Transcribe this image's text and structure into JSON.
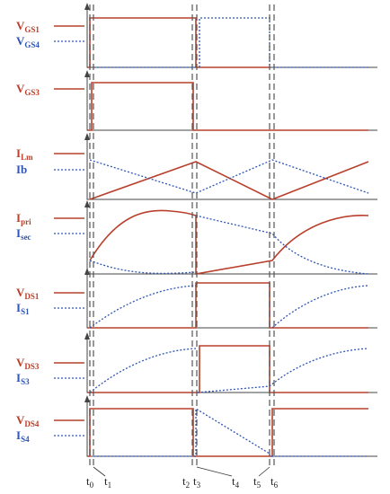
{
  "panels": [
    {
      "labels": [
        {
          "base": "V",
          "sub": "GS1"
        },
        {
          "base": "V",
          "sub": "GS4"
        }
      ]
    },
    {
      "labels": [
        {
          "base": "V",
          "sub": "GS3"
        }
      ]
    },
    {
      "labels": [
        {
          "base": "I",
          "sub": "Lm"
        },
        {
          "base": "Ib"
        }
      ]
    },
    {
      "labels": [
        {
          "base": "I",
          "sub": "pri"
        },
        {
          "base": "I",
          "sub": "sec"
        }
      ]
    },
    {
      "labels": [
        {
          "base": "V",
          "sub": "DS1"
        },
        {
          "base": "I",
          "sub": "S1"
        }
      ]
    },
    {
      "labels": [
        {
          "base": "V",
          "sub": "DS3"
        },
        {
          "base": "I",
          "sub": "S3"
        }
      ]
    },
    {
      "labels": [
        {
          "base": "V",
          "sub": "DS4"
        },
        {
          "base": "I",
          "sub": "S4"
        }
      ]
    }
  ],
  "time_labels": [
    {
      "base": "t",
      "sub": "0"
    },
    {
      "base": "t",
      "sub": "1"
    },
    {
      "base": "t",
      "sub": "2"
    },
    {
      "base": "t",
      "sub": "3"
    },
    {
      "base": "t",
      "sub": "4"
    },
    {
      "base": "t",
      "sub": "5"
    },
    {
      "base": "t",
      "sub": "6"
    }
  ]
}
